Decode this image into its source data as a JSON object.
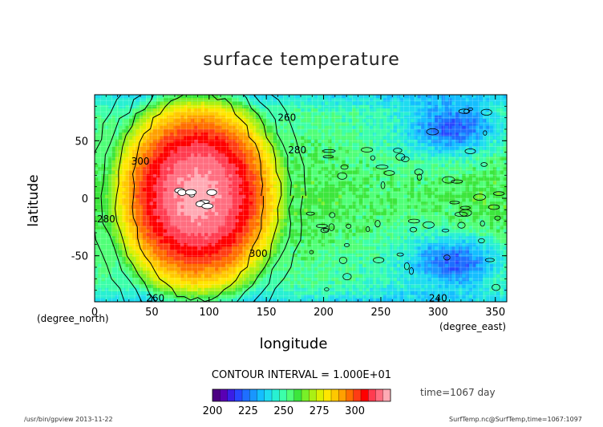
{
  "chart_data": {
    "type": "heatmap",
    "title": "surface temperature",
    "xlabel": "longitude",
    "ylabel": "latitude",
    "x_unit": "(degree_east)",
    "y_unit": "(degree_north)",
    "xlim": [
      0,
      360
    ],
    "ylim": [
      -90,
      90
    ],
    "x_ticks": [
      0,
      50,
      100,
      150,
      200,
      250,
      300,
      350
    ],
    "y_ticks": [
      -50,
      0,
      50
    ],
    "contour_interval_text": "CONTOUR INTERVAL = 1.000E+01",
    "contour_levels": [
      240,
      260,
      280,
      300
    ],
    "contour_labels": [
      {
        "text": "260",
        "lon": 168,
        "lat": 70
      },
      {
        "text": "280",
        "lon": 177,
        "lat": 42
      },
      {
        "text": "300",
        "lon": 40,
        "lat": 32
      },
      {
        "text": "280",
        "lon": 10,
        "lat": -18
      },
      {
        "text": "300",
        "lon": 143,
        "lat": -48
      },
      {
        "text": "260",
        "lon": 53,
        "lat": -87
      },
      {
        "text": "240",
        "lon": 300,
        "lat": -87
      }
    ],
    "hot_spot": {
      "center_lon": 90,
      "center_lat": 2,
      "peak": 322
    },
    "cold_regions": [
      {
        "center_lon": 315,
        "center_lat": 60,
        "value": 225
      },
      {
        "center_lon": 315,
        "center_lat": -55,
        "value": 225
      }
    ],
    "colorbar": {
      "ticks": [
        200,
        225,
        250,
        275,
        300
      ],
      "min": 200,
      "max": 325,
      "colors": [
        "#4b0082",
        "#5a00b4",
        "#3a1ee6",
        "#2846ff",
        "#1e6eff",
        "#1996ff",
        "#14beff",
        "#1edcf0",
        "#28f0d2",
        "#3cffaa",
        "#50ff78",
        "#3ce63c",
        "#78f028",
        "#aaf014",
        "#dcf000",
        "#ffe600",
        "#ffc800",
        "#ffa000",
        "#ff6e00",
        "#ff3c14",
        "#ff0000",
        "#ff3c50",
        "#ff6e80",
        "#ffaab4"
      ]
    },
    "time_text": "time=1067 day"
  },
  "footer": {
    "left": "/usr/bin/gpview   2013-11-22",
    "right": "SurfTemp.nc@SurfTemp,time=1067:1097"
  }
}
